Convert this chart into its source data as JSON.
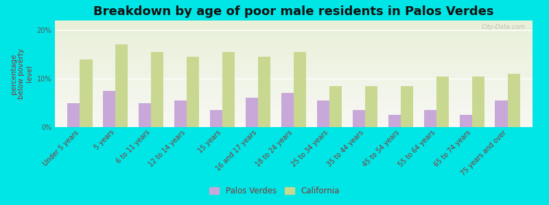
{
  "title": "Breakdown by age of poor male residents in Palos Verdes",
  "ylabel": "percentage\nbelow poverty\nlevel",
  "categories": [
    "Under 5 years",
    "5 years",
    "6 to 11 years",
    "12 to 14 years",
    "15 years",
    "16 and 17 years",
    "18 to 24 years",
    "25 to 34 years",
    "35 to 44 years",
    "45 to 54 years",
    "55 to 64 years",
    "65 to 74 years",
    "75 years and over"
  ],
  "palos_verdes": [
    5.0,
    7.5,
    5.0,
    5.5,
    3.5,
    6.0,
    7.0,
    5.5,
    3.5,
    2.5,
    3.5,
    2.5,
    5.5
  ],
  "california": [
    14.0,
    17.0,
    15.5,
    14.5,
    15.5,
    14.5,
    15.5,
    8.5,
    8.5,
    8.5,
    10.5,
    10.5,
    11.0
  ],
  "palos_verdes_color": "#c8a8d8",
  "california_color": "#c8d890",
  "background_color": "#00e5e5",
  "plot_bg_color": "#f0f4e8",
  "ylim": [
    0,
    22
  ],
  "yticks": [
    0,
    10,
    20
  ],
  "ytick_labels": [
    "0%",
    "10%",
    "20%"
  ],
  "bar_width": 0.35,
  "title_fontsize": 13,
  "axis_label_fontsize": 7.5,
  "tick_fontsize": 7,
  "legend_labels": [
    "Palos Verdes",
    "California"
  ],
  "watermark": "City-Data.com"
}
